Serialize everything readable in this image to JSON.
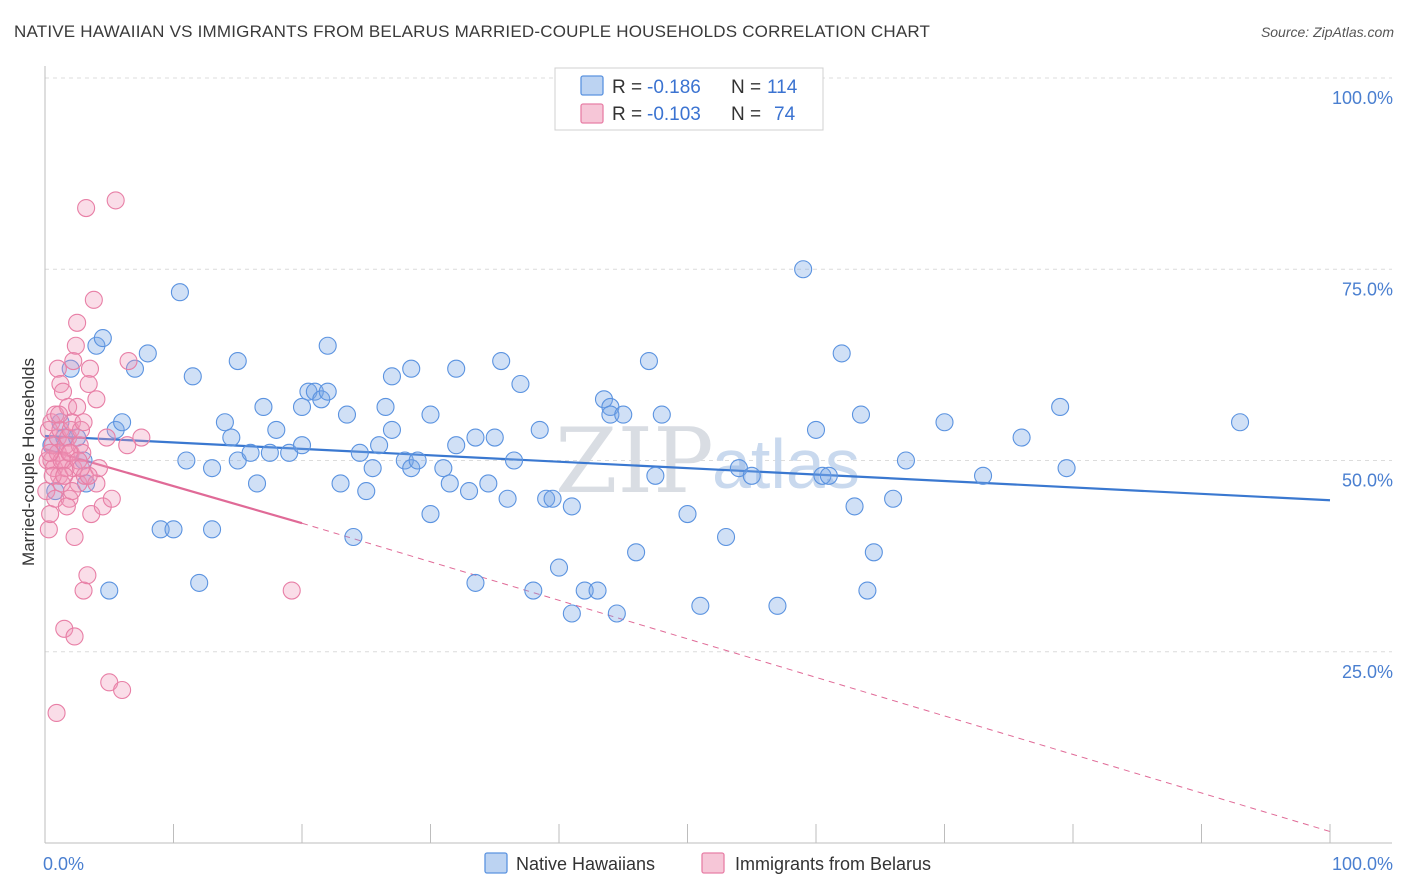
{
  "title": "NATIVE HAWAIIAN VS IMMIGRANTS FROM BELARUS MARRIED-COUPLE HOUSEHOLDS CORRELATION CHART",
  "source": "Source: ZipAtlas.com",
  "watermark": {
    "zip": "ZIP",
    "atlas": "atlas"
  },
  "legend": {
    "r_label": "R =",
    "n_label": "N =",
    "rows": [
      {
        "r": "-0.186",
        "n": "114",
        "color": "#5b93e0"
      },
      {
        "r": "-0.103",
        "n": "74",
        "color": "#e87fa6"
      }
    ]
  },
  "chart_data": {
    "type": "scatter",
    "xlabel": "",
    "ylabel": "Married-couple Households",
    "xlim": [
      0,
      100
    ],
    "ylim": [
      0,
      100
    ],
    "x_tick_labels": [
      "0.0%",
      "100.0%"
    ],
    "y_tick_labels": [
      "25.0%",
      "50.0%",
      "75.0%",
      "100.0%"
    ],
    "y_ticks": [
      25,
      50,
      75,
      100
    ],
    "grid": true,
    "series": [
      {
        "name": "Native Hawaiians",
        "color": "#5b93e0",
        "points": [
          [
            0.5,
            52
          ],
          [
            0.8,
            46
          ],
          [
            1.2,
            55
          ],
          [
            1.5,
            53
          ],
          [
            2,
            62
          ],
          [
            2.5,
            53
          ],
          [
            3,
            50
          ],
          [
            3.2,
            47
          ],
          [
            4,
            65
          ],
          [
            4.5,
            66
          ],
          [
            5,
            33
          ],
          [
            5.5,
            54
          ],
          [
            6,
            55
          ],
          [
            7,
            62
          ],
          [
            8,
            64
          ],
          [
            9,
            41
          ],
          [
            10,
            41
          ],
          [
            10.5,
            72
          ],
          [
            11,
            50
          ],
          [
            11.5,
            61
          ],
          [
            12,
            34
          ],
          [
            13,
            41
          ],
          [
            13,
            49
          ],
          [
            14,
            55
          ],
          [
            14.5,
            53
          ],
          [
            15,
            63
          ],
          [
            15,
            50
          ],
          [
            16,
            51
          ],
          [
            16.5,
            47
          ],
          [
            17,
            57
          ],
          [
            17.5,
            51
          ],
          [
            18,
            54
          ],
          [
            19,
            51
          ],
          [
            20,
            52
          ],
          [
            20,
            57
          ],
          [
            20.5,
            59
          ],
          [
            21,
            59
          ],
          [
            21.5,
            58
          ],
          [
            22,
            59
          ],
          [
            22,
            65
          ],
          [
            23,
            47
          ],
          [
            23.5,
            56
          ],
          [
            24,
            40
          ],
          [
            24.5,
            51
          ],
          [
            25,
            46
          ],
          [
            25.5,
            49
          ],
          [
            26,
            52
          ],
          [
            26.5,
            57
          ],
          [
            27,
            61
          ],
          [
            27,
            54
          ],
          [
            28,
            50
          ],
          [
            28.5,
            49
          ],
          [
            28.5,
            62
          ],
          [
            29,
            50
          ],
          [
            30,
            43
          ],
          [
            30,
            56
          ],
          [
            31,
            49
          ],
          [
            31.5,
            47
          ],
          [
            32,
            62
          ],
          [
            32,
            52
          ],
          [
            33,
            46
          ],
          [
            33.5,
            34
          ],
          [
            33.5,
            53
          ],
          [
            34.5,
            47
          ],
          [
            35,
            53
          ],
          [
            35.5,
            63
          ],
          [
            36,
            45
          ],
          [
            36.5,
            50
          ],
          [
            37,
            60
          ],
          [
            38,
            33
          ],
          [
            38.5,
            54
          ],
          [
            39,
            45
          ],
          [
            39.5,
            45
          ],
          [
            40,
            36
          ],
          [
            41,
            30
          ],
          [
            41,
            44
          ],
          [
            42,
            33
          ],
          [
            43,
            33
          ],
          [
            43.5,
            58
          ],
          [
            44,
            57
          ],
          [
            44,
            56
          ],
          [
            44.5,
            30
          ],
          [
            45,
            56
          ],
          [
            46,
            38
          ],
          [
            47,
            63
          ],
          [
            47.5,
            48
          ],
          [
            48,
            56
          ],
          [
            50,
            43
          ],
          [
            51,
            31
          ],
          [
            53,
            40
          ],
          [
            54,
            49
          ],
          [
            55,
            48
          ],
          [
            57,
            31
          ],
          [
            59,
            75
          ],
          [
            60,
            54
          ],
          [
            60.5,
            48
          ],
          [
            61,
            48
          ],
          [
            62,
            64
          ],
          [
            63,
            44
          ],
          [
            63.5,
            56
          ],
          [
            64,
            33
          ],
          [
            64.5,
            38
          ],
          [
            66,
            45
          ],
          [
            67,
            50
          ],
          [
            70,
            55
          ],
          [
            73,
            48
          ],
          [
            76,
            53
          ],
          [
            79,
            57
          ],
          [
            79.5,
            49
          ],
          [
            93,
            55
          ]
        ]
      },
      {
        "name": "Immigrants from Belarus",
        "color": "#e87fa6",
        "points": [
          [
            0.1,
            46
          ],
          [
            0.2,
            50
          ],
          [
            0.3,
            54
          ],
          [
            0.3,
            41
          ],
          [
            0.4,
            43
          ],
          [
            0.5,
            50
          ],
          [
            0.5,
            55
          ],
          [
            0.6,
            52
          ],
          [
            0.7,
            49
          ],
          [
            0.8,
            56
          ],
          [
            0.8,
            45
          ],
          [
            1,
            53
          ],
          [
            1,
            62
          ],
          [
            1,
            51
          ],
          [
            1.1,
            48
          ],
          [
            1.2,
            60
          ],
          [
            1.2,
            54
          ],
          [
            1.3,
            47
          ],
          [
            1.4,
            59
          ],
          [
            1.5,
            28
          ],
          [
            1.5,
            50
          ],
          [
            1.6,
            52
          ],
          [
            1.6,
            49
          ],
          [
            1.8,
            53
          ],
          [
            1.8,
            57
          ],
          [
            1.9,
            45
          ],
          [
            2,
            51
          ],
          [
            2,
            54
          ],
          [
            2.1,
            55
          ],
          [
            2.2,
            49
          ],
          [
            2.2,
            63
          ],
          [
            2.3,
            40
          ],
          [
            2.3,
            27
          ],
          [
            2.4,
            65
          ],
          [
            2.5,
            57
          ],
          [
            2.5,
            68
          ],
          [
            2.6,
            47
          ],
          [
            2.7,
            52
          ],
          [
            2.8,
            54
          ],
          [
            2.9,
            51
          ],
          [
            3,
            55
          ],
          [
            3,
            33
          ],
          [
            3.1,
            48
          ],
          [
            3.2,
            83
          ],
          [
            3.3,
            35
          ],
          [
            3.4,
            60
          ],
          [
            3.5,
            62
          ],
          [
            3.6,
            43
          ],
          [
            3.8,
            71
          ],
          [
            4,
            58
          ],
          [
            4,
            47
          ],
          [
            4.2,
            49
          ],
          [
            4.5,
            44
          ],
          [
            4.8,
            53
          ],
          [
            5,
            21
          ],
          [
            5.2,
            45
          ],
          [
            5.5,
            84
          ],
          [
            6,
            20
          ],
          [
            6.4,
            52
          ],
          [
            6.5,
            63
          ],
          [
            7.5,
            53
          ],
          [
            19.2,
            33
          ],
          [
            0.9,
            17
          ],
          [
            1.7,
            44
          ],
          [
            2.1,
            46
          ],
          [
            0.6,
            48
          ],
          [
            1.3,
            50
          ],
          [
            1.9,
            51
          ],
          [
            2.6,
            50
          ],
          [
            3.4,
            48
          ],
          [
            0.4,
            51
          ],
          [
            1.1,
            56
          ],
          [
            2.8,
            49
          ],
          [
            1.5,
            48
          ]
        ]
      }
    ],
    "trend_lines": [
      {
        "series": "Native Hawaiians",
        "x": [
          0,
          100
        ],
        "y": [
          53.2,
          44.8
        ],
        "style": "solid"
      },
      {
        "series": "Immigrants from Belarus",
        "x": [
          0,
          20
        ],
        "y": [
          51.5,
          41.8
        ],
        "style": "solid"
      },
      {
        "series": "Immigrants from Belarus",
        "x": [
          20,
          100
        ],
        "y": [
          41.8,
          1.5
        ],
        "style": "dashed"
      }
    ]
  }
}
